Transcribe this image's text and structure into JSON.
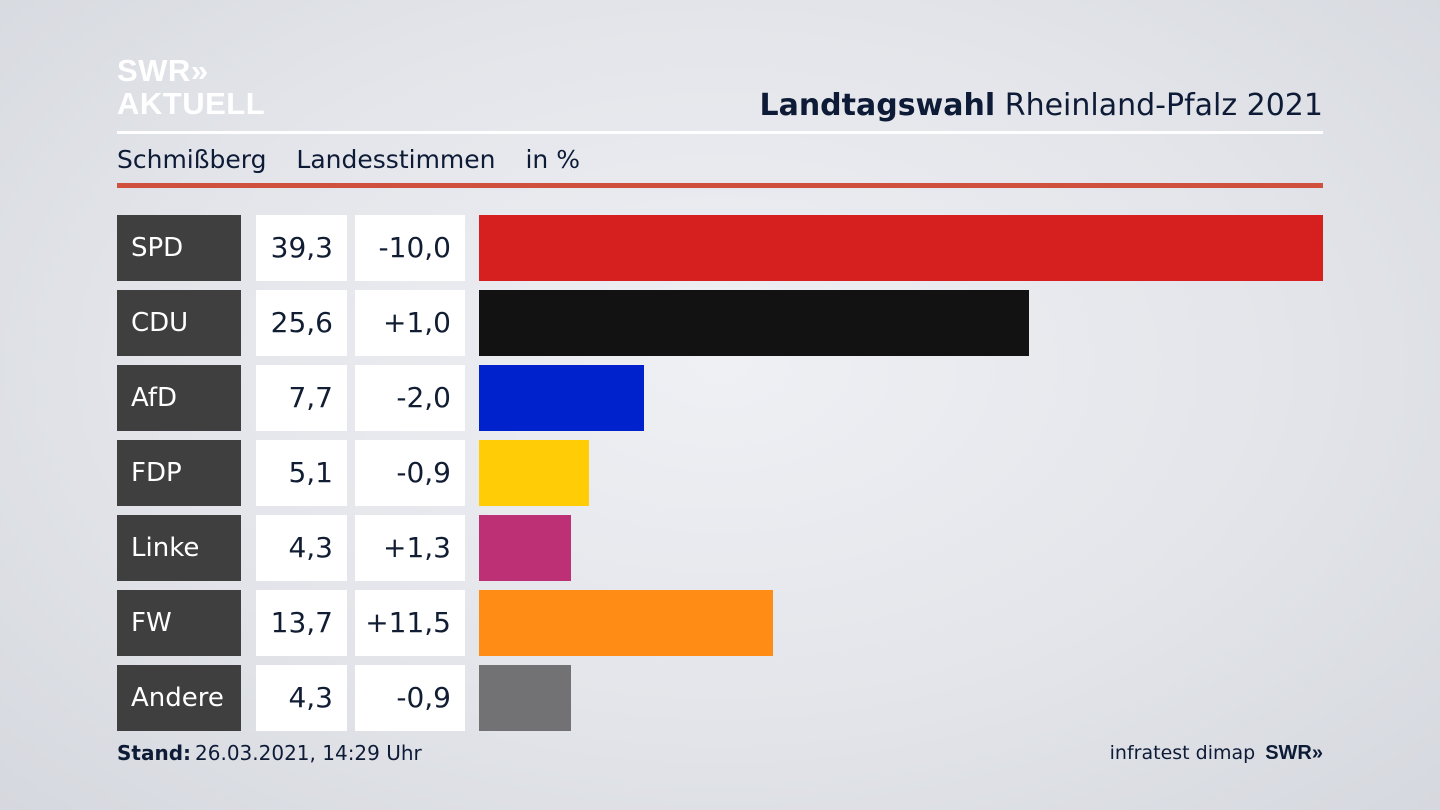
{
  "logo": {
    "line1": "SWR»",
    "line2": "AKTUELL"
  },
  "header": {
    "title_bold": "Landtagswahl",
    "title_rest": "Rheinland-Pfalz 2021"
  },
  "subtitle": {
    "place": "Schmißberg",
    "measure": "Landesstimmen",
    "unit": "in %"
  },
  "chart_data": {
    "type": "bar",
    "categories": [
      "SPD",
      "CDU",
      "AfD",
      "FDP",
      "Linke",
      "FW",
      "Andere"
    ],
    "values": [
      39.3,
      25.6,
      7.7,
      5.1,
      4.3,
      13.7,
      4.3
    ],
    "value_labels": [
      "39,3",
      "25,6",
      "7,7",
      "5,1",
      "4,3",
      "13,7",
      "4,3"
    ],
    "change_labels": [
      "-10,0",
      "+1,0",
      "-2,0",
      "-0,9",
      "+1,3",
      "+11,5",
      "-0,9"
    ],
    "changes": [
      -10.0,
      1.0,
      -2.0,
      -0.9,
      1.3,
      11.5,
      -0.9
    ],
    "colors": [
      "#d62020",
      "#121212",
      "#0022cc",
      "#ffcc06",
      "#be3075",
      "#ff8c14",
      "#727274"
    ],
    "xlim": [
      0,
      39.3
    ],
    "orientation": "horizontal"
  },
  "footer": {
    "stand_label": "Stand:",
    "stand_value": "26.03.2021, 14:29 Uhr",
    "source": "infratest dimap",
    "brand": "SWR»"
  }
}
